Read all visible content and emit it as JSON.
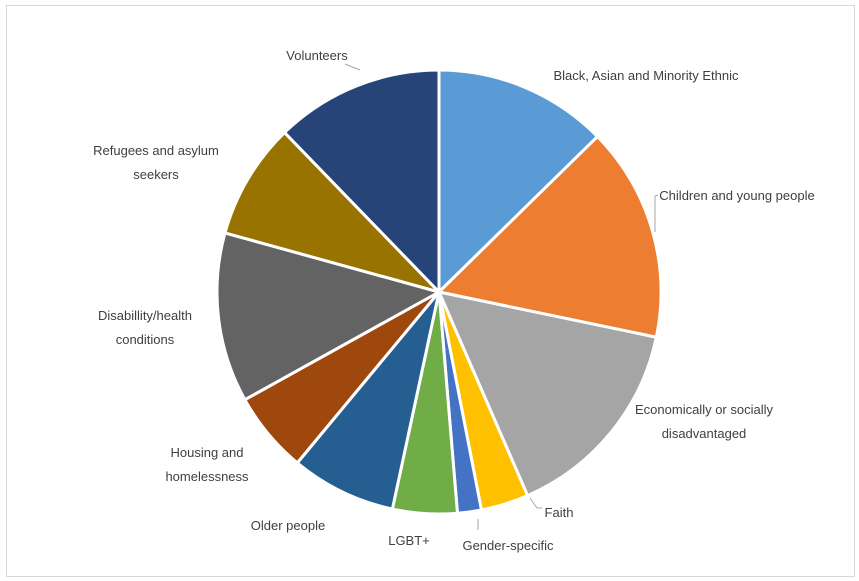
{
  "chart_data": {
    "type": "pie",
    "title": "",
    "start_angle_deg": 0,
    "direction": "clockwise",
    "slices": [
      {
        "label": "Black, Asian and Minority Ethnic",
        "lines": [
          "Black, Asian and Minority Ethnic"
        ],
        "value": 12.4,
        "color": "#5b9bd5"
      },
      {
        "label": "Children and young people",
        "lines": [
          "Children and young people"
        ],
        "value": 15.3,
        "color": "#ed7d31"
      },
      {
        "label": "Economically or socially disadvantaged",
        "lines": [
          "Economically or socially",
          "disadvantaged"
        ],
        "value": 14.9,
        "color": "#a5a5a5"
      },
      {
        "label": "Faith",
        "lines": [
          "Faith"
        ],
        "value": 3.4,
        "color": "#ffc000"
      },
      {
        "label": "Gender-specific",
        "lines": [
          "Gender-specific"
        ],
        "value": 1.7,
        "color": "#4472c4"
      },
      {
        "label": "LGBT+",
        "lines": [
          "LGBT+"
        ],
        "value": 4.6,
        "color": "#70ad47"
      },
      {
        "label": "Older people",
        "lines": [
          "Older people"
        ],
        "value": 7.5,
        "color": "#255e91"
      },
      {
        "label": "Housing and homelessness",
        "lines": [
          "Housing and",
          "homelessness"
        ],
        "value": 5.8,
        "color": "#9e480e"
      },
      {
        "label": "Disabillity/health conditions",
        "lines": [
          "Disabillity/health",
          "conditions"
        ],
        "value": 12.1,
        "color": "#636363"
      },
      {
        "label": "Refugees and asylum seekers",
        "lines": [
          "Refugees and asylum",
          "seekers"
        ],
        "value": 8.3,
        "color": "#997300"
      },
      {
        "label": "Volunteers",
        "lines": [
          "Volunteers"
        ],
        "value": 12.0,
        "color": "#264478"
      }
    ]
  }
}
